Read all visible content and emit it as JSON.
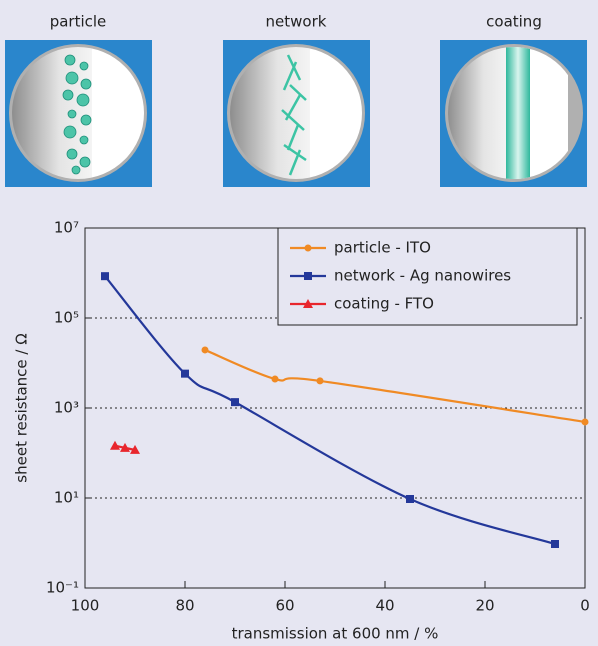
{
  "panels": [
    "particle",
    "network",
    "coating"
  ],
  "chart_data": {
    "type": "line",
    "xlabel": "transmission at 600 nm / %",
    "ylabel": "sheet resistance / Ω",
    "xlim": [
      100,
      0
    ],
    "xticks": [
      100,
      80,
      60,
      40,
      20,
      0
    ],
    "ylim": [
      0.1,
      10000000
    ],
    "log_y": true,
    "yticks": [
      {
        "value": 10000000,
        "label": "10⁷"
      },
      {
        "value": 100000,
        "label": "10⁵"
      },
      {
        "value": 1000,
        "label": "10³"
      },
      {
        "value": 10,
        "label": "10¹"
      },
      {
        "value": 0.1,
        "label": "10⁻¹"
      }
    ],
    "grid": true,
    "legend": "upper right",
    "series": [
      {
        "name": "particle - ITO",
        "color": "#f08a24",
        "marker": "circle",
        "x": [
          76,
          62,
          53,
          0
        ],
        "values": [
          19500,
          4400,
          4000,
          490
        ]
      },
      {
        "name": "network - Ag nanowires",
        "color": "#24389a",
        "marker": "square",
        "x": [
          96,
          80,
          70,
          35,
          6
        ],
        "values": [
          850000,
          5800,
          1350,
          9.5,
          0.95
        ]
      },
      {
        "name": "coating - FTO",
        "color": "#e8262d",
        "marker": "triangle",
        "x": [
          94,
          92,
          90
        ],
        "values": [
          145,
          130,
          117
        ]
      }
    ]
  }
}
